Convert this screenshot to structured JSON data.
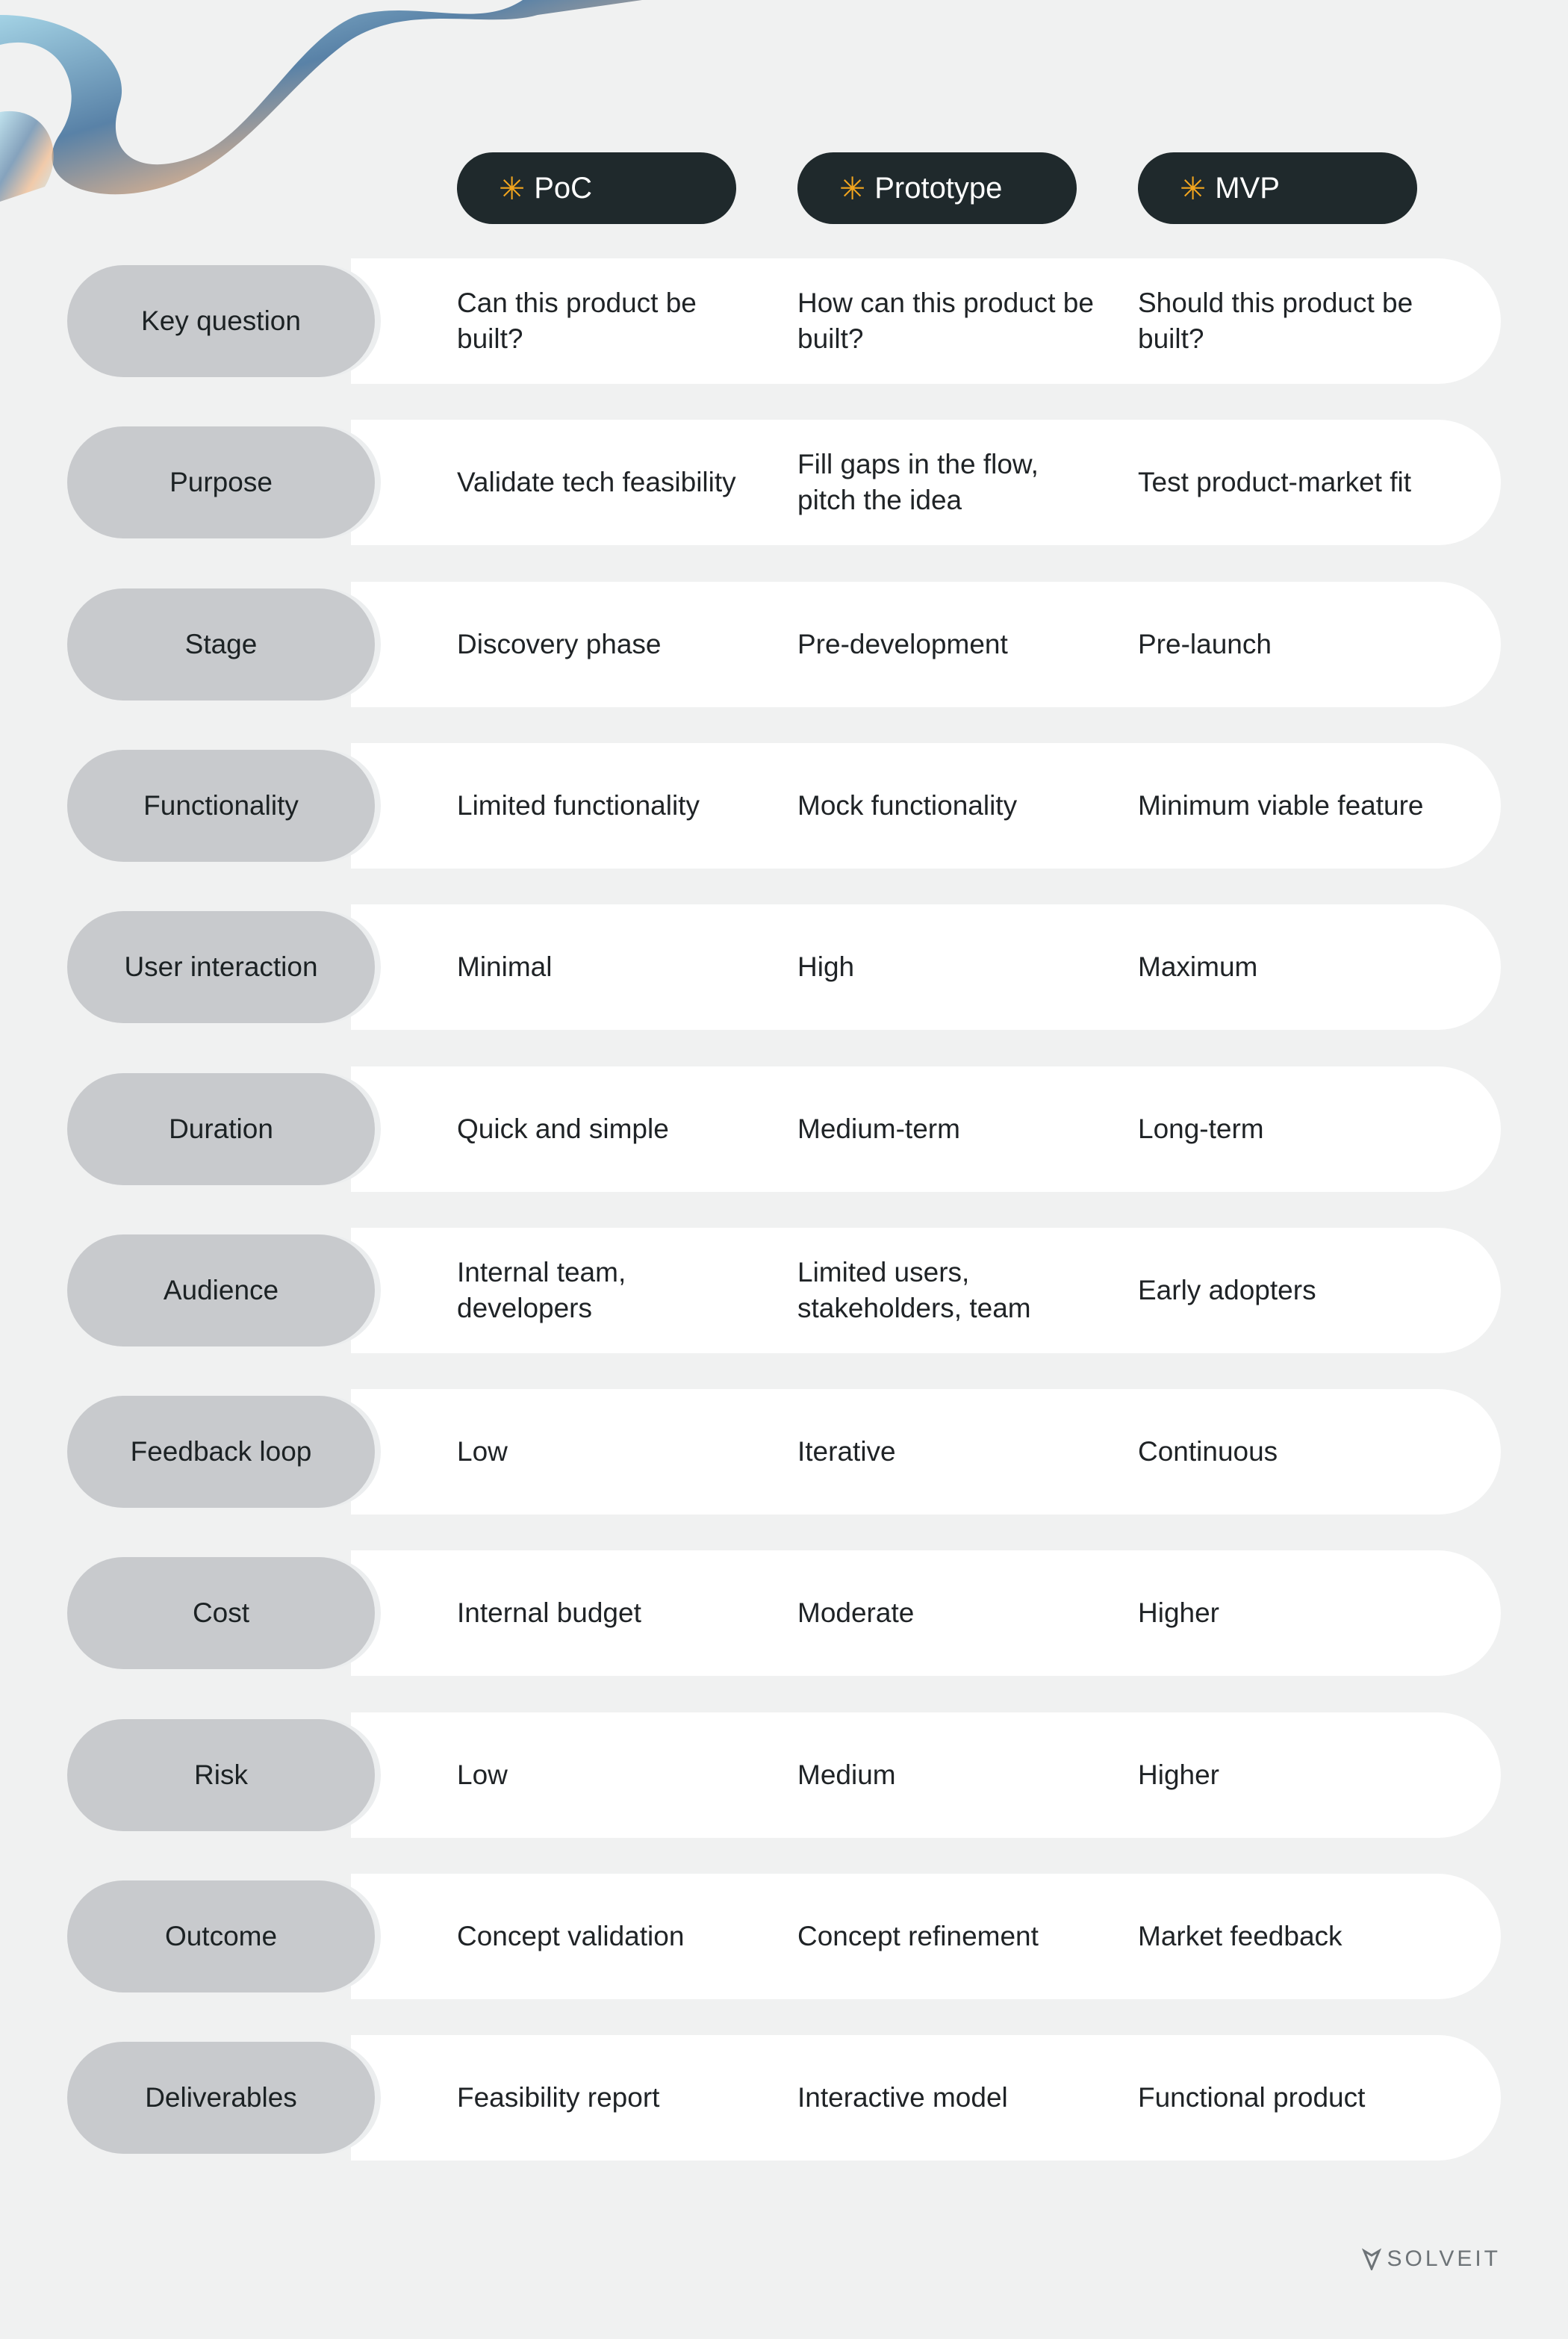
{
  "header": {
    "columns": [
      "PoC",
      "Prototype",
      "MVP"
    ]
  },
  "table": {
    "rows": [
      [
        "Key question",
        "Can this product be built?",
        "How can this product be built?",
        "Should this product be built?"
      ],
      [
        "Purpose",
        "Validate tech feasibility",
        "Fill gaps in the flow, pitch the idea",
        "Test product-market fit"
      ],
      [
        "Stage",
        "Discovery phase",
        "Pre-development",
        "Pre-launch"
      ],
      [
        "Functionality",
        "Limited functionality",
        "Mock functionality",
        "Minimum viable feature"
      ],
      [
        "User interaction",
        "Minimal",
        "High",
        "Maximum"
      ],
      [
        "Duration",
        "Quick and simple",
        "Medium-term",
        "Long-term"
      ],
      [
        "Audience",
        "Internal team, developers",
        "Limited users, stakeholders, team",
        "Early adopters"
      ],
      [
        "Feedback loop",
        "Low",
        "Iterative",
        "Continuous"
      ],
      [
        "Cost",
        "Internal budget",
        "Moderate",
        "Higher"
      ],
      [
        "Risk",
        "Low",
        "Medium",
        "Higher"
      ],
      [
        "Outcome",
        "Concept validation",
        "Concept refinement",
        "Market feedback"
      ],
      [
        "Deliverables",
        "Feasibility report",
        "Interactive model",
        "Functional product"
      ]
    ]
  },
  "footer": {
    "brand": "SOLVEIT"
  }
}
